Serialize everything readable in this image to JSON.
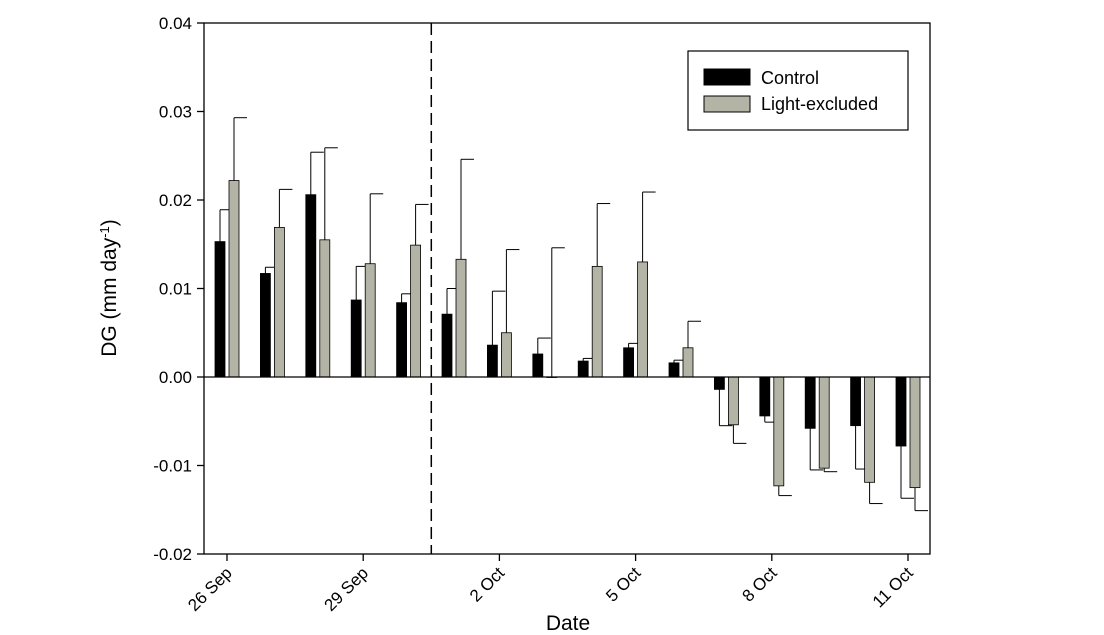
{
  "chart_data": {
    "type": "bar",
    "xlabel": "Date",
    "ylabel": {
      "main": "DG (mm day",
      "superscript": "-1",
      "suffix": ")"
    },
    "ylim": [
      -0.02,
      0.04
    ],
    "yticks": [
      "-0.02",
      "-0.01",
      "0.00",
      "0.01",
      "0.02",
      "0.03",
      "0.04"
    ],
    "ytick_values": [
      -0.02,
      -0.01,
      0.0,
      0.01,
      0.02,
      0.03,
      0.04
    ],
    "xticks": [
      {
        "label": "26 Sep",
        "index": 0
      },
      {
        "label": "29 Sep",
        "index": 3
      },
      {
        "label": "2 Oct",
        "index": 6
      },
      {
        "label": "5 Oct",
        "index": 9
      },
      {
        "label": "8 Oct",
        "index": 12
      },
      {
        "label": "11 Oct",
        "index": 15
      }
    ],
    "divider_after_index": 4,
    "legend_position": "top-right",
    "series": [
      {
        "name": "Control",
        "color": "#000000",
        "values": [
          0.0153,
          0.0117,
          0.0206,
          0.0087,
          0.0084,
          0.0071,
          0.0036,
          0.0026,
          0.0018,
          0.0033,
          0.0016,
          -0.0014,
          -0.0044,
          -0.0058,
          -0.0055,
          -0.0078
        ],
        "errors": [
          0.0036,
          0.0007,
          0.0048,
          0.0038,
          0.001,
          0.0029,
          0.0061,
          0.0018,
          0.0003,
          0.0005,
          0.0003,
          0.0041,
          0.0007,
          0.0047,
          0.0049,
          0.0059
        ]
      },
      {
        "name": "Light-excluded",
        "color": "#b3b3a6",
        "values": [
          0.0222,
          0.0169,
          0.0155,
          0.0128,
          0.0149,
          0.0133,
          0.005,
          0.0,
          0.0125,
          0.013,
          0.0033,
          -0.0054,
          -0.0123,
          -0.0103,
          -0.0119,
          -0.0125
        ],
        "errors": [
          0.0071,
          0.0043,
          0.0104,
          0.0079,
          0.0046,
          0.0113,
          0.0094,
          0.0146,
          0.0071,
          0.0079,
          0.003,
          0.0021,
          0.0011,
          0.0004,
          0.0024,
          0.0026
        ]
      }
    ]
  }
}
